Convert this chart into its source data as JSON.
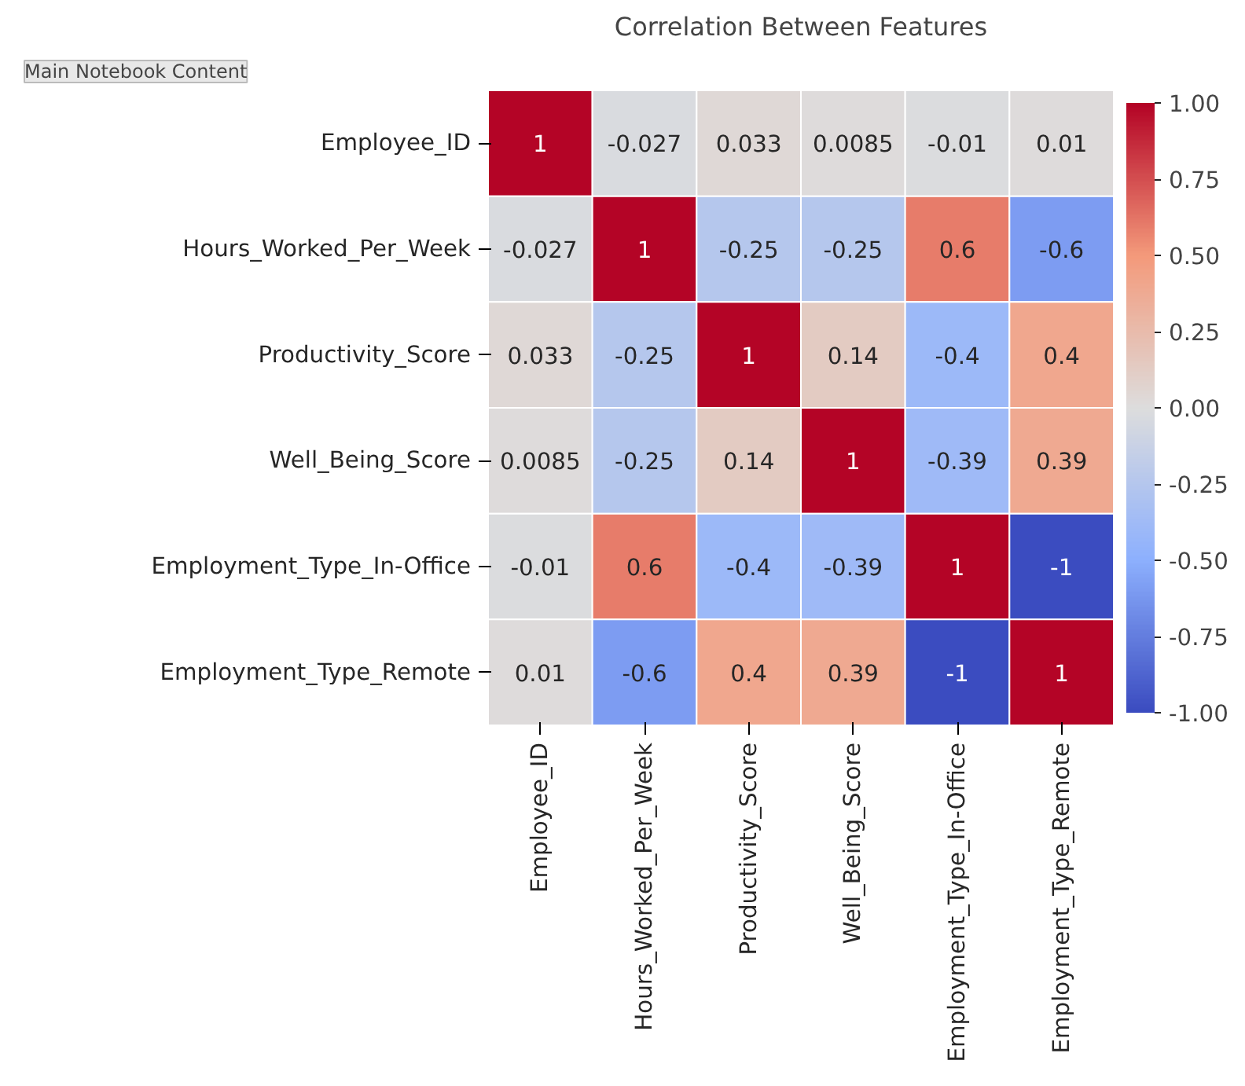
{
  "chart_data": {
    "type": "heatmap",
    "title": "Correlation Between Features",
    "categories": [
      "Employee_ID",
      "Hours_Worked_Per_Week",
      "Productivity_Score",
      "Well_Being_Score",
      "Employment_Type_In-Office",
      "Employment_Type_Remote"
    ],
    "y_categories": [
      "Employee_ID",
      "Hours_Worked_Per_Week",
      "Productivity_Score",
      "Well_Being_Score",
      "Employment_Type_In-Office",
      "Employment_Type_Remote"
    ],
    "cells": [
      [
        1,
        -0.027,
        0.033,
        0.0085,
        -0.01,
        0.01
      ],
      [
        -0.027,
        1,
        -0.25,
        -0.25,
        0.6,
        -0.6
      ],
      [
        0.033,
        -0.25,
        1,
        0.14,
        -0.4,
        0.4
      ],
      [
        0.0085,
        -0.25,
        0.14,
        1,
        -0.39,
        0.39
      ],
      [
        -0.01,
        0.6,
        -0.4,
        -0.39,
        1,
        -1
      ],
      [
        0.01,
        -0.6,
        0.4,
        0.39,
        -1,
        1
      ]
    ],
    "data_labels": true,
    "clim": [
      -1,
      1
    ],
    "cticks": [
      {
        "value": -1,
        "label": "-1.00"
      },
      {
        "value": -0.75,
        "label": "-0.75"
      },
      {
        "value": -0.5,
        "label": "-0.50"
      },
      {
        "value": -0.25,
        "label": "-0.25"
      },
      {
        "value": 0,
        "label": "0.00"
      },
      {
        "value": 0.25,
        "label": "0.25"
      },
      {
        "value": 0.5,
        "label": "0.50"
      },
      {
        "value": 0.75,
        "label": "0.75"
      },
      {
        "value": 1,
        "label": "1.00"
      }
    ],
    "annotations": [
      "Main Notebook Content"
    ]
  }
}
